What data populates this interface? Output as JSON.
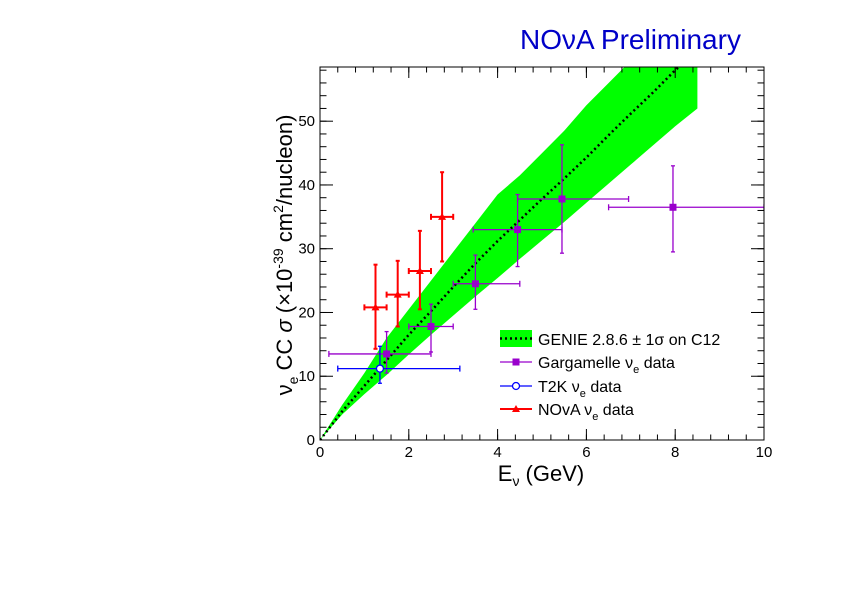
{
  "banner": "NOνA Preliminary",
  "chart_data": {
    "type": "scatter",
    "title": "",
    "xlabel": "E_ν (GeV)",
    "ylabel": "ν_e CC σ (×10^-39 cm^2/nucleon)",
    "xlim": [
      0,
      10
    ],
    "ylim": [
      0,
      58.5
    ],
    "x_ticks": [
      0,
      2,
      4,
      6,
      8,
      10
    ],
    "y_ticks": [
      0,
      10,
      20,
      30,
      40,
      50
    ],
    "legend": {
      "placement": "bottom-right",
      "entries": [
        {
          "label": "GENIE 2.8.6 ± 1σ on C12",
          "color": "#00ff00"
        },
        {
          "label": "Gargamelle ν_e data",
          "color": "#9900cc"
        },
        {
          "label": "T2K ν_e data",
          "color": "#0000ff"
        },
        {
          "label": "NOvA ν_e data",
          "color": "#ff0000"
        }
      ]
    },
    "band": {
      "name": "GENIE 2.8.6 ± 1σ on C12",
      "x": [
        0,
        0.5,
        1.0,
        1.5,
        2.0,
        2.5,
        3.0,
        3.5,
        4.0,
        4.5,
        5.0,
        5.5,
        6.0,
        6.5,
        7.0,
        7.5,
        8.0,
        8.5
      ],
      "central": [
        0,
        4.5,
        8.5,
        12.5,
        16.5,
        20.2,
        24.0,
        27.7,
        31.2,
        34.5,
        37.8,
        41.0,
        44.3,
        47.8,
        51.2,
        54.5,
        58.0,
        61.0
      ],
      "lower": [
        0,
        4.0,
        7.2,
        10.2,
        13.4,
        16.5,
        19.5,
        22.5,
        25.4,
        28.4,
        31.3,
        34.2,
        37.2,
        40.2,
        43.2,
        46.2,
        49.2,
        52.0
      ],
      "upper": [
        0,
        5.5,
        10.5,
        16.0,
        20.5,
        25.0,
        29.5,
        34.0,
        38.5,
        41.5,
        45.0,
        48.5,
        52.5,
        56.0,
        59.5,
        63.0,
        66.5,
        70.0
      ]
    },
    "series": [
      {
        "name": "Gargamelle ν_e data",
        "color": "#9900cc",
        "marker": "square",
        "points": [
          {
            "x": 1.5,
            "y": 13.5,
            "xerr": [
              1.3,
              1.0
            ],
            "yerr": [
              3.0,
              3.5
            ]
          },
          {
            "x": 2.5,
            "y": 17.8,
            "xerr": [
              0.5,
              0.5
            ],
            "yerr": [
              4.0,
              3.5
            ]
          },
          {
            "x": 3.5,
            "y": 24.5,
            "xerr": [
              0.5,
              1.0
            ],
            "yerr": [
              4.0,
              4.5
            ]
          },
          {
            "x": 4.45,
            "y": 33.0,
            "xerr": [
              1.0,
              1.0
            ],
            "yerr": [
              5.8,
              5.5
            ]
          },
          {
            "x": 5.45,
            "y": 37.8,
            "xerr": [
              1.0,
              1.5
            ],
            "yerr": [
              8.5,
              8.5
            ]
          },
          {
            "x": 7.95,
            "y": 36.5,
            "xerr": [
              1.45,
              2.05
            ],
            "yerr": [
              7.0,
              6.5
            ]
          }
        ]
      },
      {
        "name": "T2K ν_e data",
        "color": "#0000ff",
        "marker": "open-circle",
        "points": [
          {
            "x": 1.35,
            "y": 11.2,
            "xerr": [
              0.95,
              1.8
            ],
            "yerr": [
              2.3,
              3.5
            ]
          }
        ]
      },
      {
        "name": "NOvA ν_e data",
        "color": "#ff0000",
        "marker": "triangle",
        "points": [
          {
            "x": 1.25,
            "y": 20.8,
            "xerr": [
              0.25,
              0.25
            ],
            "yerr": [
              6.5,
              6.7
            ]
          },
          {
            "x": 1.75,
            "y": 22.8,
            "xerr": [
              0.25,
              0.25
            ],
            "yerr": [
              5.0,
              5.3
            ]
          },
          {
            "x": 2.25,
            "y": 26.5,
            "xerr": [
              0.25,
              0.25
            ],
            "yerr": [
              6.0,
              6.3
            ]
          },
          {
            "x": 2.75,
            "y": 35.0,
            "xerr": [
              0.25,
              0.25
            ],
            "yerr": [
              7.0,
              7.0
            ]
          }
        ]
      }
    ]
  }
}
